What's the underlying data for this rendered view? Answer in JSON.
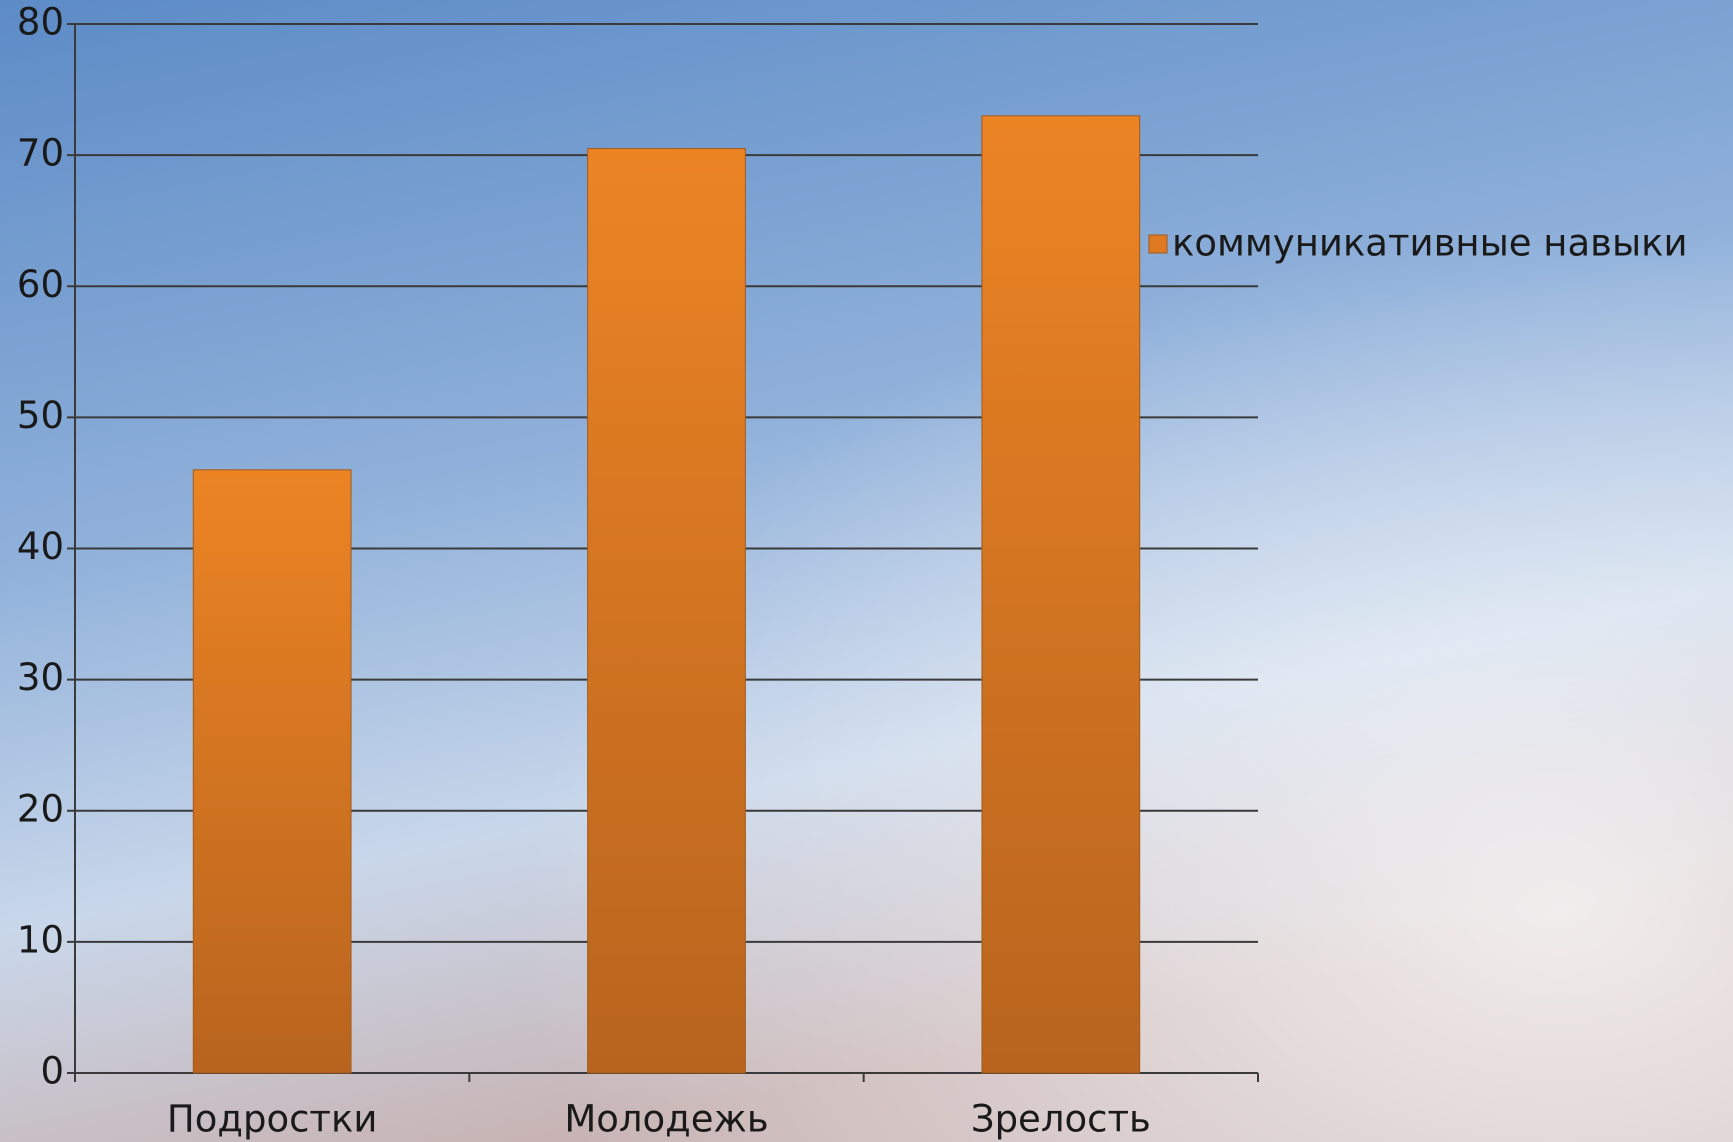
{
  "chart_data": {
    "type": "bar",
    "categories": [
      "Подростки",
      "Молодежь",
      "Зрелость"
    ],
    "series": [
      {
        "name": "коммуникативные навыки",
        "color": "#e07a22",
        "values": [
          46,
          70.5,
          73
        ]
      }
    ],
    "ylim": [
      0,
      80
    ],
    "yticks": [
      0,
      10,
      20,
      30,
      40,
      50,
      60,
      70,
      80
    ],
    "grid": true,
    "legend": "right"
  }
}
